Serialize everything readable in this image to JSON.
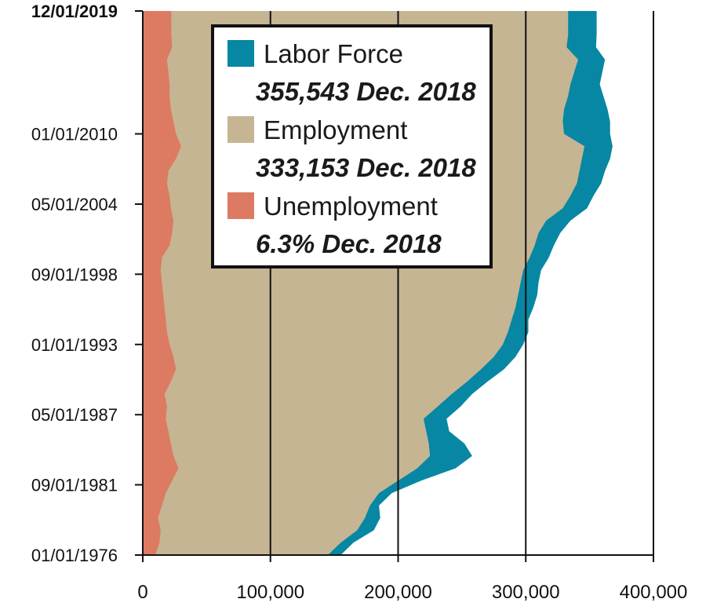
{
  "chart_data": {
    "type": "area",
    "orientation": "horizontal",
    "colors": {
      "labor_force": "#0787a3",
      "employment": "#c5b593",
      "unemployment": "#dd7a62",
      "grid": "#111111"
    },
    "xlim": [
      0,
      400000
    ],
    "x_ticks": [
      0,
      100000,
      200000,
      300000,
      400000
    ],
    "x_tick_labels": [
      "0",
      "100,000",
      "200,000",
      "300,000",
      "400,000"
    ],
    "y_tick_labels": [
      "12/01/2019",
      "01/01/2010",
      "05/01/2004",
      "09/01/1998",
      "01/01/1993",
      "05/01/1987",
      "09/01/1981",
      "01/01/1976"
    ],
    "y_tick_years": [
      2019.92,
      2010.0,
      2004.33,
      1998.67,
      1993.0,
      1987.33,
      1981.67,
      1976.0
    ],
    "y_range": [
      1976.0,
      2019.92
    ],
    "legend_position": "top-center",
    "legend": [
      {
        "label": "Labor Force",
        "value": "355,543 Dec. 2018",
        "color_key": "labor_force"
      },
      {
        "label": "Employment",
        "value": "333,153 Dec. 2018",
        "color_key": "employment"
      },
      {
        "label": "Unemployment",
        "value": "6.3%  Dec. 2018",
        "color_key": "unemployment"
      }
    ],
    "series": [
      {
        "name": "Labor Force",
        "years": [
          1976.0,
          1977.0,
          1978.0,
          1979.0,
          1980.0,
          1981.0,
          1982.0,
          1983.0,
          1984.0,
          1985.0,
          1986.0,
          1987.0,
          1988.0,
          1989.0,
          1990.0,
          1991.0,
          1992.0,
          1993.0,
          1994.0,
          1995.0,
          1996.0,
          1997.0,
          1998.0,
          1999.0,
          2000.0,
          2001.0,
          2002.0,
          2003.0,
          2004.0,
          2005.0,
          2006.0,
          2007.0,
          2008.0,
          2009.0,
          2010.0,
          2011.0,
          2012.0,
          2013.0,
          2014.0,
          2015.0,
          2016.0,
          2017.0,
          2018.0,
          2019.92
        ],
        "values": [
          155000,
          165000,
          181000,
          186000,
          185000,
          195000,
          218000,
          245000,
          258000,
          252000,
          240000,
          238000,
          249000,
          258000,
          270000,
          283000,
          292000,
          298000,
          302000,
          302000,
          306000,
          309000,
          310000,
          312000,
          318000,
          322000,
          327000,
          335000,
          348000,
          353000,
          359000,
          362000,
          366000,
          368000,
          366000,
          366000,
          364000,
          361000,
          358000,
          360000,
          362000,
          355000,
          355543,
          355500
        ]
      },
      {
        "name": "Employment",
        "years": [
          1976.0,
          1977.0,
          1978.0,
          1979.0,
          1980.0,
          1981.0,
          1982.0,
          1983.0,
          1984.0,
          1985.0,
          1986.0,
          1987.0,
          1988.0,
          1989.0,
          1990.0,
          1991.0,
          1992.0,
          1993.0,
          1994.0,
          1995.0,
          1996.0,
          1997.0,
          1998.0,
          1999.0,
          2000.0,
          2001.0,
          2002.0,
          2003.0,
          2004.0,
          2005.0,
          2006.0,
          2007.0,
          2008.0,
          2009.0,
          2010.0,
          2011.0,
          2012.0,
          2013.0,
          2014.0,
          2015.0,
          2016.0,
          2017.0,
          2018.0,
          2019.92
        ],
        "values": [
          145000,
          155000,
          168000,
          174000,
          178000,
          185000,
          200000,
          215000,
          225000,
          224000,
          222000,
          220000,
          231000,
          242000,
          254000,
          265000,
          275000,
          282000,
          286000,
          289000,
          292000,
          294000,
          296000,
          298000,
          303000,
          307000,
          310000,
          316000,
          329000,
          335000,
          340000,
          342000,
          344000,
          346000,
          330000,
          329000,
          330000,
          333000,
          335000,
          338000,
          341000,
          332000,
          333153,
          333200
        ]
      },
      {
        "name": "Unemployment",
        "years": [
          1976.0,
          1977.0,
          1978.0,
          1979.0,
          1980.0,
          1981.0,
          1982.0,
          1983.0,
          1984.0,
          1985.0,
          1986.0,
          1987.0,
          1988.0,
          1989.0,
          1990.0,
          1991.0,
          1992.0,
          1993.0,
          1994.0,
          1995.0,
          1996.0,
          1997.0,
          1998.0,
          1999.0,
          2000.0,
          2001.0,
          2002.0,
          2003.0,
          2004.0,
          2005.0,
          2006.0,
          2007.0,
          2008.0,
          2009.0,
          2010.0,
          2011.0,
          2012.0,
          2013.0,
          2014.0,
          2015.0,
          2016.0,
          2017.0,
          2018.0,
          2019.92
        ],
        "values": [
          10000,
          13000,
          14000,
          12000,
          15000,
          18000,
          23000,
          28000,
          24000,
          22000,
          20000,
          18000,
          19000,
          17000,
          22000,
          26000,
          24000,
          21000,
          19000,
          18000,
          17000,
          16000,
          15000,
          14000,
          15000,
          21000,
          23000,
          24000,
          22000,
          21000,
          19000,
          20000,
          26000,
          30000,
          26000,
          24000,
          22000,
          21000,
          21000,
          20000,
          19000,
          23000,
          22390,
          22300
        ]
      }
    ]
  }
}
